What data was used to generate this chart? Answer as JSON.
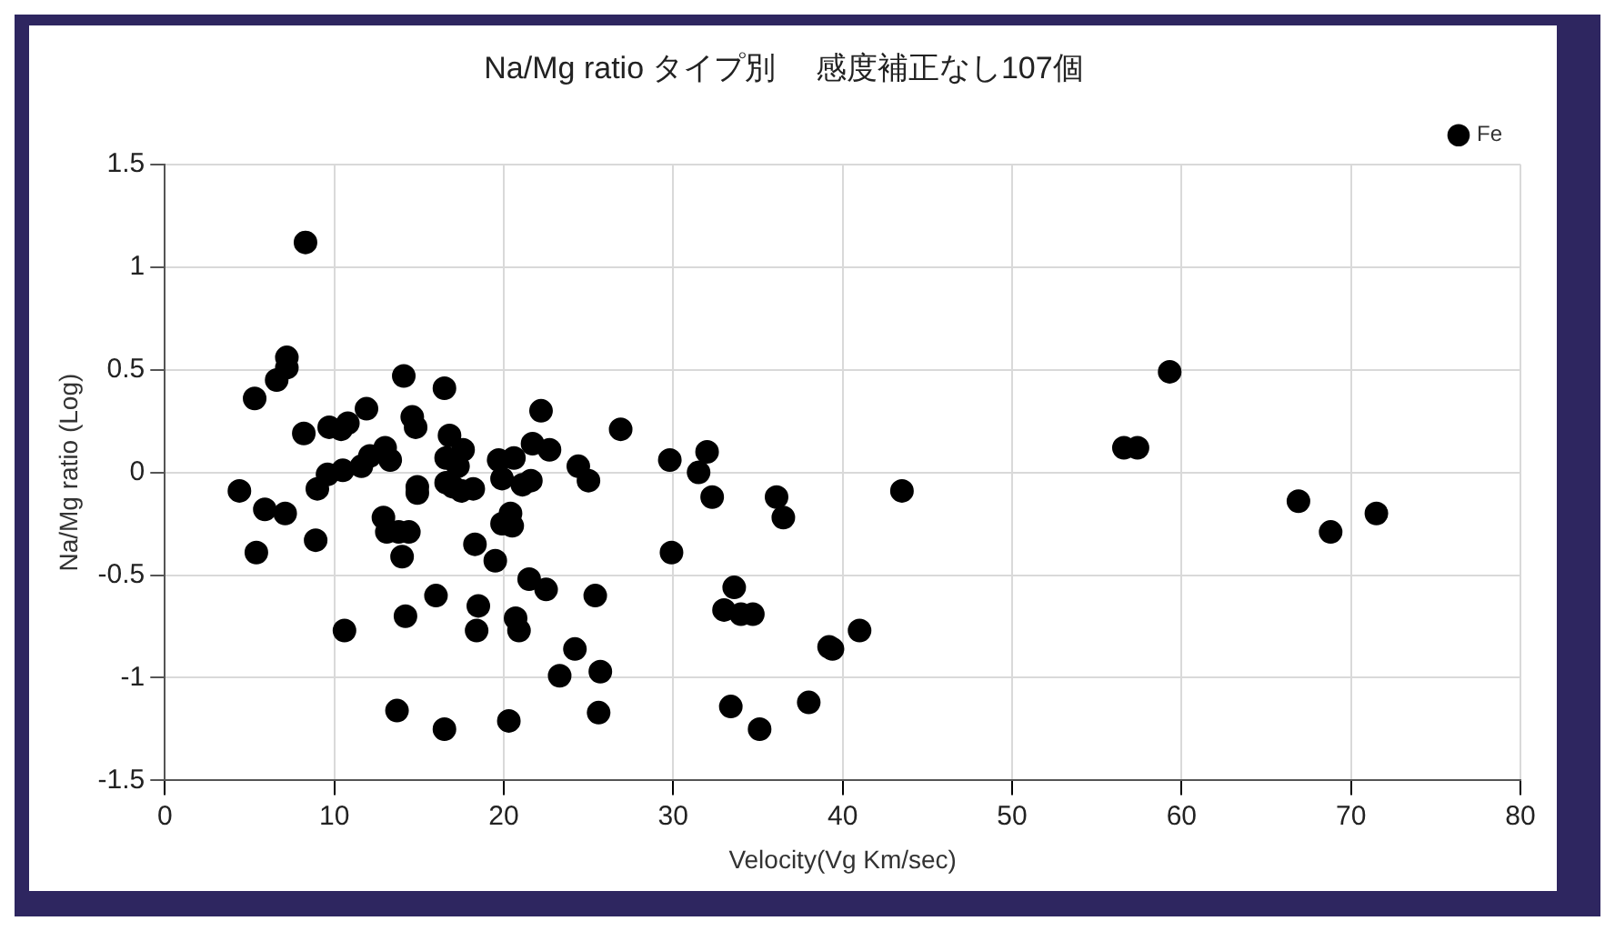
{
  "chart_data": {
    "type": "scatter",
    "title": "Na/Mg ratio タイプ別　 感度補正なし107個",
    "xlabel": "Velocity(Vg Km/sec)",
    "ylabel": "Na/Mg ratio (Log)",
    "xlim": [
      0,
      80
    ],
    "xticks": [
      0,
      10,
      20,
      30,
      40,
      50,
      60,
      70,
      80
    ],
    "ylim": [
      -1.5,
      1.5
    ],
    "yticks": [
      -1.5,
      -1,
      -0.5,
      0,
      0.5,
      1,
      1.5
    ],
    "grid": true,
    "legend": "top right",
    "marker": "circle",
    "series": [
      {
        "name": "Fe",
        "color": "#000000",
        "x": [
          4.4,
          5.3,
          5.4,
          5.9,
          6.6,
          7.1,
          7.2,
          7.2,
          8.3,
          8.2,
          8.9,
          9.0,
          9.6,
          9.7,
          10.4,
          10.5,
          10.6,
          10.8,
          11.6,
          11.9,
          12.1,
          12.9,
          13.0,
          13.1,
          13.3,
          13.7,
          13.8,
          14.0,
          14.1,
          14.2,
          14.4,
          14.6,
          14.8,
          14.9,
          14.9,
          16.0,
          16.5,
          16.5,
          16.6,
          16.6,
          16.8,
          17.0,
          17.3,
          17.5,
          17.6,
          18.2,
          18.3,
          18.4,
          18.5,
          19.5,
          19.7,
          19.9,
          19.9,
          20.3,
          20.4,
          20.5,
          20.6,
          20.7,
          20.9,
          21.1,
          21.5,
          21.6,
          21.7,
          22.2,
          22.5,
          22.7,
          23.3,
          24.2,
          24.4,
          25.0,
          25.4,
          25.6,
          25.7,
          26.9,
          29.8,
          29.9,
          31.5,
          32.0,
          32.3,
          33.0,
          33.4,
          33.6,
          34.0,
          34.7,
          35.1,
          36.1,
          36.5,
          38.0,
          39.2,
          39.4,
          41.0,
          43.5,
          56.6,
          57.4,
          59.3,
          66.9,
          68.8,
          71.5
        ],
        "values": [
          -0.09,
          0.36,
          -0.39,
          -0.18,
          0.45,
          -0.2,
          0.56,
          0.51,
          1.12,
          0.19,
          -0.33,
          -0.08,
          -0.01,
          0.22,
          0.21,
          0.01,
          -0.77,
          0.24,
          0.03,
          0.31,
          0.08,
          -0.22,
          0.12,
          -0.29,
          0.06,
          -1.16,
          -0.29,
          -0.41,
          0.47,
          -0.7,
          -0.29,
          0.27,
          0.22,
          -0.07,
          -0.1,
          -0.6,
          -1.25,
          0.41,
          0.07,
          -0.05,
          0.18,
          -0.07,
          0.03,
          -0.09,
          0.11,
          -0.08,
          -0.35,
          -0.77,
          -0.65,
          -0.43,
          0.06,
          -0.03,
          -0.25,
          -1.21,
          -0.2,
          -0.26,
          0.07,
          -0.71,
          -0.77,
          -0.06,
          -0.52,
          -0.04,
          0.14,
          0.3,
          -0.57,
          0.11,
          -0.99,
          -0.86,
          0.03,
          -0.04,
          -0.6,
          -1.17,
          -0.97,
          0.21,
          0.06,
          -0.39,
          0.0,
          0.1,
          -0.12,
          -0.67,
          -1.14,
          -0.56,
          -0.69,
          -0.69,
          -1.25,
          -0.12,
          -0.22,
          -1.12,
          -0.85,
          -0.86,
          -0.77,
          -0.09,
          0.12,
          0.12,
          0.49,
          -0.14,
          -0.29,
          -0.2
        ]
      }
    ]
  }
}
